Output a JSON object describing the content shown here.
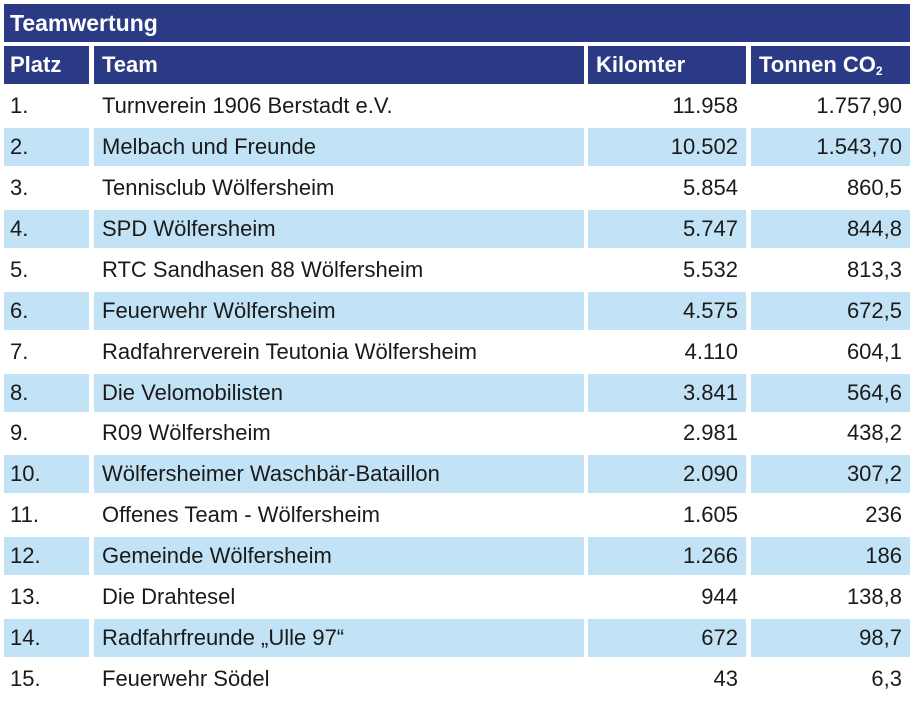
{
  "title": "Teamwertung",
  "columns": {
    "platz": "Platz",
    "team": "Team",
    "km": "Kilomter",
    "co2": "Tonnen CO",
    "co2_sub": "2"
  },
  "rows": [
    {
      "platz": "1.",
      "team": "Turnverein 1906 Berstadt e.V.",
      "km": "11.958",
      "co2": "1.757,90"
    },
    {
      "platz": "2.",
      "team": "Melbach und Freunde",
      "km": "10.502",
      "co2": "1.543,70"
    },
    {
      "platz": "3.",
      "team": "Tennisclub Wölfersheim",
      "km": "5.854",
      "co2": "860,5"
    },
    {
      "platz": "4.",
      "team": "SPD Wölfersheim",
      "km": "5.747",
      "co2": "844,8"
    },
    {
      "platz": "5.",
      "team": "RTC Sandhasen 88 Wölfersheim",
      "km": "5.532",
      "co2": "813,3"
    },
    {
      "platz": "6.",
      "team": "Feuerwehr Wölfersheim",
      "km": "4.575",
      "co2": "672,5"
    },
    {
      "platz": "7.",
      "team": "Radfahrerverein Teutonia Wölfersheim",
      "km": "4.110",
      "co2": "604,1"
    },
    {
      "platz": "8.",
      "team": "Die Velomobilisten",
      "km": "3.841",
      "co2": "564,6"
    },
    {
      "platz": "9.",
      "team": "R09 Wölfersheim",
      "km": "2.981",
      "co2": "438,2"
    },
    {
      "platz": "10.",
      "team": "Wölfersheimer Waschbär-Bataillon",
      "km": "2.090",
      "co2": "307,2"
    },
    {
      "platz": "11.",
      "team": "Offenes Team - Wölfersheim",
      "km": "1.605",
      "co2": "236"
    },
    {
      "platz": "12.",
      "team": "Gemeinde Wölfersheim",
      "km": "1.266",
      "co2": "186"
    },
    {
      "platz": "13.",
      "team": "Die Drahtesel",
      "km": "944",
      "co2": "138,8"
    },
    {
      "platz": "14.",
      "team": "Radfahrfreunde „Ulle 97“",
      "km": "672",
      "co2": "98,7"
    },
    {
      "platz": "15.",
      "team": "Feuerwehr Södel",
      "km": "43",
      "co2": "6,3"
    }
  ],
  "colors": {
    "header_bg": "#2b3a85",
    "header_text": "#ffffff",
    "row_shade": "#c2e2f6",
    "text": "#1a1a1a"
  }
}
